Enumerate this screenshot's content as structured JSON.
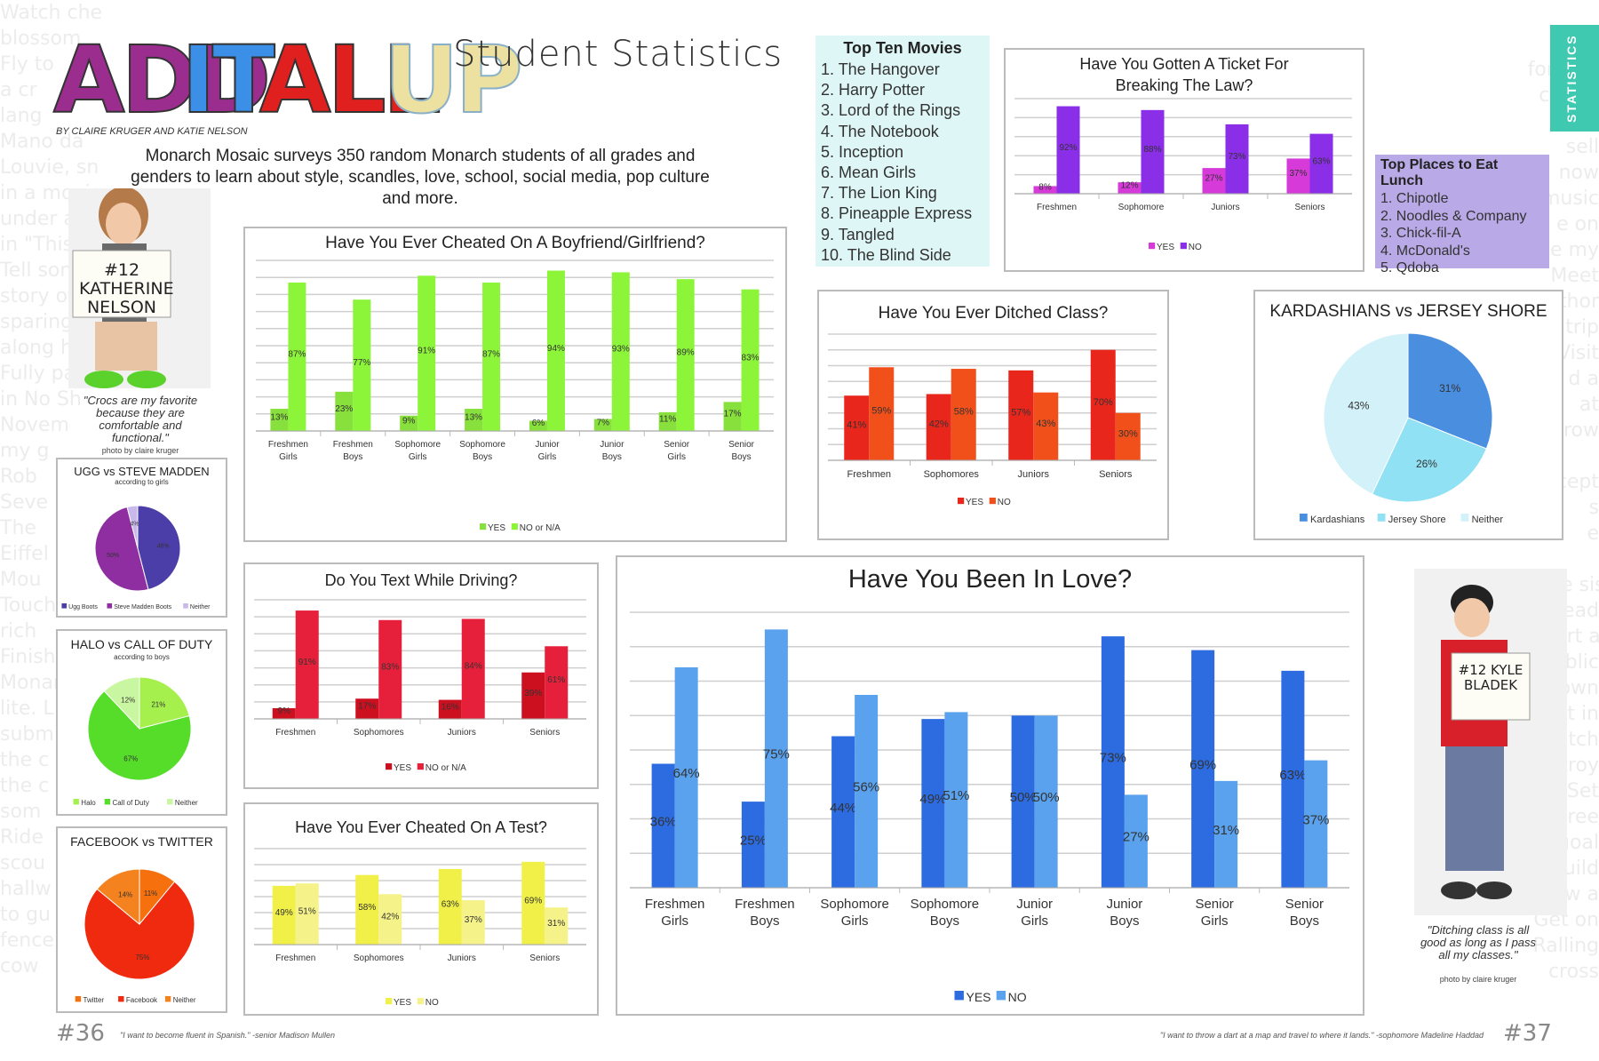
{
  "header": {
    "title_words": [
      "ADD",
      "IT",
      "ALL",
      "UP"
    ],
    "subtitle": "Student Statistics",
    "byline": "BY CLAIRE KRUGER AND KATIE NELSON",
    "intro": "Monarch Mosaic surveys 350 random Monarch students of all grades and genders to learn about style, scandles, love, school, social media, pop culture and more.",
    "section_tab": "STATISTICS"
  },
  "background_text_left": "Watch cheap\nblossom\nFly to\na cr\nlang\nMano da\nLouvie, sn\nin a movie\nunder a sta\nin \"This N\nTell som\nstory of\nsparing n\nalong hea\nFully par\nin No Sh\nNovem\nmy g\nRob\nSeve\nThe\nEiffel\nMou\nTouch\nrich\nFinish\nMonar\nlite. L\nsubm\nthe c\nthe c\nsom\nRide\nscou\nhallw\nto gu\nfence\ncow",
  "background_text_right": "urn\nfortune\ncoffee\nand\nsell\nnow\nmusic\ne on\nme my\nMeet\nauthor\ntrip\nVisit\nd a\nat\nrow\n\nscept\ns\ne\n\nen the sis\nws. Lead\ne. Start a\nr public\nown\n. Get in\nmatch\nDestroy\nter. Set\ndegree\neld goal\nne build\nGrow a\nGet on\nRalling\ncross",
  "katherine": {
    "sign": "#12 KATHERINE NELSON",
    "quote": "\"Crocs are my favorite because they are comfortable and functional.\"",
    "credit": "photo by claire kruger"
  },
  "kyle": {
    "sign": "#12 KYLE BLADEK",
    "quote": "\"Ditching class is all good as long as I pass all my classes.\"",
    "credit": "photo by claire kruger"
  },
  "top_movies": {
    "heading": "Top Ten Movies",
    "items": [
      "1. The Hangover",
      "2. Harry Potter",
      "3. Lord of the Rings",
      "4. The Notebook",
      "5. Inception",
      "6. Mean Girls",
      "7. The Lion King",
      "8. Pineapple Express",
      "9. Tangled",
      "10. The Blind Side"
    ],
    "bg": "#dff6f7"
  },
  "top_lunch": {
    "heading": "Top Places to Eat Lunch",
    "items": [
      "1. Chipotle",
      "2. Noodles & Company",
      "3. Chick-fil-A",
      "4. McDonald's",
      "5. Qdoba"
    ],
    "bg": "#b9a9e6"
  },
  "footer": {
    "page_left": "#36",
    "page_right": "#37",
    "quote_left": "\"I want to become fluent in Spanish.\" -senior Madison Mullen",
    "quote_right": "\"I want to throw a dart at a map and travel to where it lands.\" -sophomore Madeline Haddad"
  },
  "chart_data": [
    {
      "id": "cheated_partner",
      "type": "bar",
      "title": "Have You Ever Cheated On A Boyfriend/Girlfriend?",
      "categories": [
        "Freshmen Girls",
        "Freshmen Boys",
        "Sophomore Girls",
        "Sophomore Boys",
        "Junior Girls",
        "Junior Boys",
        "Senior Girls",
        "Senior Boys"
      ],
      "series": [
        {
          "name": "YES",
          "values": [
            13,
            23,
            9,
            13,
            6,
            7,
            11,
            17
          ],
          "color": "#88e03c"
        },
        {
          "name": "NO or N/A",
          "values": [
            87,
            77,
            91,
            87,
            94,
            93,
            89,
            83
          ],
          "color": "#8cf53a"
        }
      ],
      "value_suffix": "%",
      "ylim": [
        0,
        100
      ],
      "grid": true,
      "legend": "bottom"
    },
    {
      "id": "ticket",
      "type": "bar",
      "title": "Have You Gotten A Ticket For Breaking The Law?",
      "categories": [
        "Freshmen",
        "Sophomore",
        "Juniors",
        "Seniors"
      ],
      "series": [
        {
          "name": "YES",
          "values": [
            8,
            12,
            27,
            37
          ],
          "color": "#d63ad9"
        },
        {
          "name": "NO",
          "values": [
            92,
            88,
            73,
            63
          ],
          "color": "#8a2ee8"
        }
      ],
      "value_suffix": "%",
      "ylim": [
        0,
        100
      ],
      "grid": true,
      "legend": "bottom"
    },
    {
      "id": "ditched",
      "type": "bar",
      "title": "Have You Ever Ditched Class?",
      "categories": [
        "Freshmen",
        "Sophomores",
        "Juniors",
        "Seniors"
      ],
      "series": [
        {
          "name": "YES",
          "values": [
            41,
            42,
            57,
            70
          ],
          "color": "#e8261c"
        },
        {
          "name": "NO",
          "values": [
            59,
            58,
            43,
            30
          ],
          "color": "#f2501a"
        }
      ],
      "value_suffix": "%",
      "ylim": [
        0,
        80
      ],
      "grid": true,
      "legend": "bottom"
    },
    {
      "id": "kardashians",
      "type": "pie",
      "title": "KARDASHIANS vs JERSEY SHORE",
      "labels": [
        "Kardashians",
        "Jersey Shore",
        "Neither"
      ],
      "values": [
        31,
        26,
        43
      ],
      "colors": [
        "#4a8ee0",
        "#8fe1f3",
        "#d3f1f8"
      ],
      "value_suffix": "%",
      "legend": "bottom"
    },
    {
      "id": "ugg",
      "type": "pie",
      "title": "UGG vs STEVE MADDEN",
      "subtitle": "according to girls",
      "labels": [
        "Ugg Boots",
        "Steve Madden Boots",
        "Neither"
      ],
      "values": [
        46,
        50,
        4
      ],
      "colors": [
        "#4b3ea8",
        "#8e2ea0",
        "#c9b8ea"
      ],
      "value_suffix": "%",
      "legend": "bottom"
    },
    {
      "id": "halo",
      "type": "pie",
      "title": "HALO vs CALL OF DUTY",
      "subtitle": "according to boys",
      "labels": [
        "Halo",
        "Call of Duty",
        "Neither"
      ],
      "values": [
        21,
        67,
        12
      ],
      "colors": [
        "#a6f04e",
        "#55dd2a",
        "#c9f6a0"
      ],
      "value_suffix": "%",
      "legend": "bottom"
    },
    {
      "id": "facebook",
      "type": "pie",
      "title": "FACEBOOK vs TWITTER",
      "labels": [
        "Twitter",
        "Facebook",
        "Neither"
      ],
      "values": [
        11,
        75,
        14
      ],
      "colors": [
        "#f7700e",
        "#f02a0e",
        "#f4821e"
      ],
      "value_suffix": "%",
      "legend": "bottom"
    },
    {
      "id": "texting",
      "type": "bar",
      "title": "Do You Text While Driving?",
      "categories": [
        "Freshmen",
        "Sophomores",
        "Juniors",
        "Seniors"
      ],
      "series": [
        {
          "name": "YES",
          "values": [
            9,
            17,
            16,
            39
          ],
          "color": "#cc1020"
        },
        {
          "name": "NO or N/A",
          "values": [
            91,
            83,
            84,
            61
          ],
          "color": "#e6203a"
        }
      ],
      "value_suffix": "%",
      "ylim": [
        0,
        100
      ],
      "grid": true,
      "legend": "bottom"
    },
    {
      "id": "cheated_test",
      "type": "bar",
      "title": "Have You Ever Cheated On A Test?",
      "categories": [
        "Freshmen",
        "Sophomores",
        "Juniors",
        "Seniors"
      ],
      "series": [
        {
          "name": "YES",
          "values": [
            49,
            58,
            63,
            69
          ],
          "color": "#f0f048"
        },
        {
          "name": "NO",
          "values": [
            51,
            42,
            37,
            31
          ],
          "color": "#f5f28a"
        }
      ],
      "value_suffix": "%",
      "ylim": [
        0,
        80
      ],
      "grid": true,
      "legend": "bottom"
    },
    {
      "id": "love",
      "type": "bar",
      "title": "Have You Been In Love?",
      "categories": [
        "Freshmen Girls",
        "Freshmen Boys",
        "Sophomore Girls",
        "Sophomore Boys",
        "Junior Girls",
        "Junior Boys",
        "Senior Girls",
        "Senior Boys"
      ],
      "series": [
        {
          "name": "YES",
          "values": [
            36,
            25,
            44,
            49,
            50,
            73,
            69,
            63
          ],
          "color": "#2c6be0"
        },
        {
          "name": "NO",
          "values": [
            64,
            75,
            56,
            51,
            50,
            27,
            31,
            37
          ],
          "color": "#5aa2ee"
        }
      ],
      "value_suffix": "%",
      "ylim": [
        0,
        80
      ],
      "grid": true,
      "legend": "bottom"
    }
  ]
}
